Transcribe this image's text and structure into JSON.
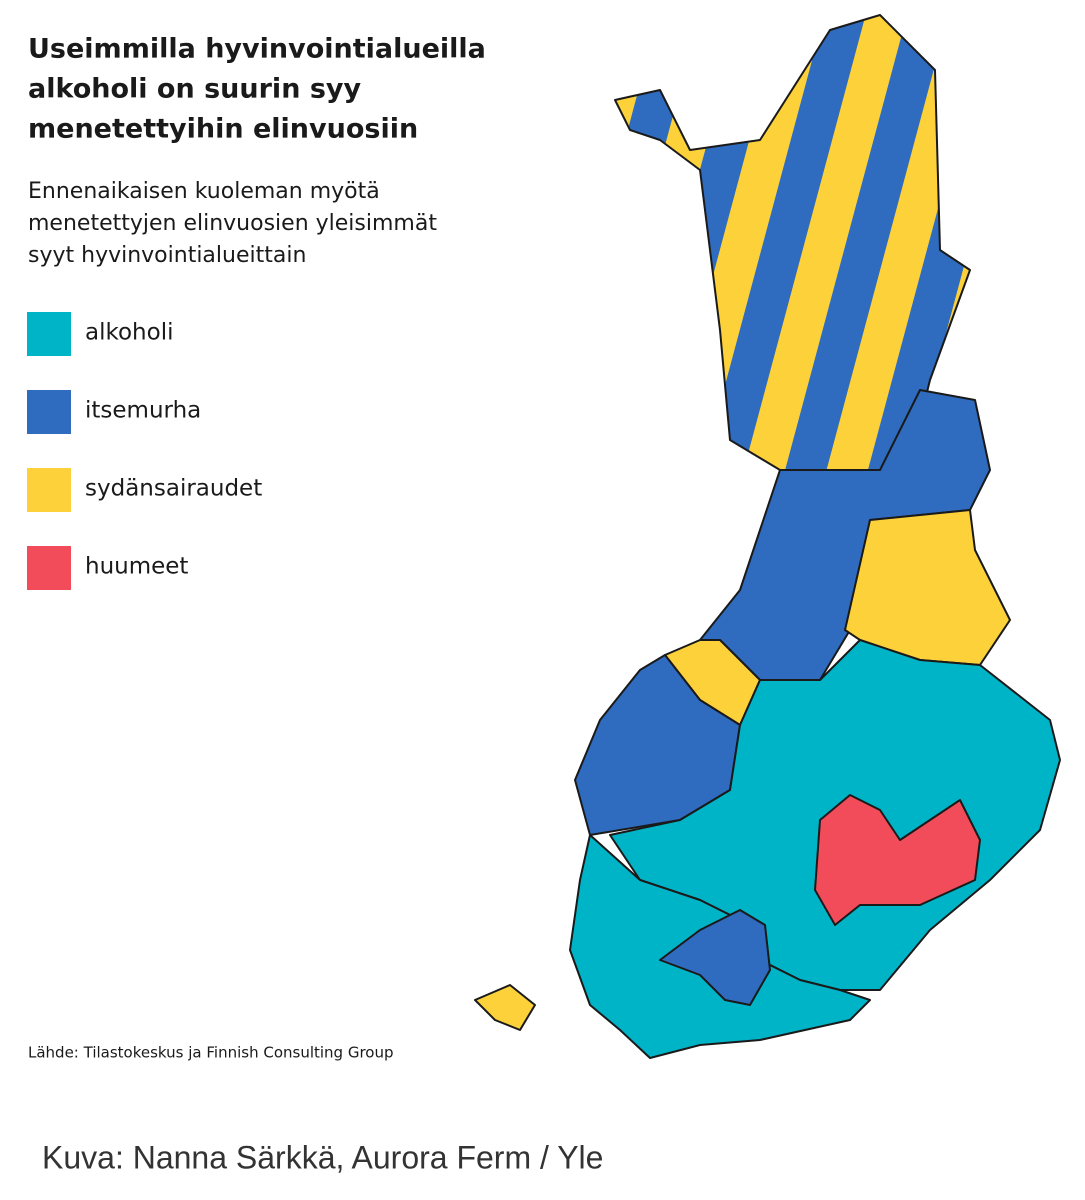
{
  "header": {
    "title": [
      "Useimmilla hyvinvointialueilla",
      "alkoholi on suurin syy",
      "menetettyihin elinvuosiin"
    ],
    "subtitle": [
      "Ennenaikaisen kuoleman myötä",
      "menetettyjen elinvuosien yleisimmät",
      "syyt hyvinvointialueittain"
    ]
  },
  "legend": [
    {
      "label": "alkoholi",
      "color": "#00b4c8"
    },
    {
      "label": "itsemurha",
      "color": "#2f6bbf"
    },
    {
      "label": "sydänsairaudet",
      "color": "#fcd13a"
    },
    {
      "label": "huumeet",
      "color": "#f24b5a"
    }
  ],
  "source": "Lähde: Tilastokeskus ja Finnish Consulting Group",
  "credit": "Kuva: Nanna Särkkä, Aurora Ferm / Yle"
}
